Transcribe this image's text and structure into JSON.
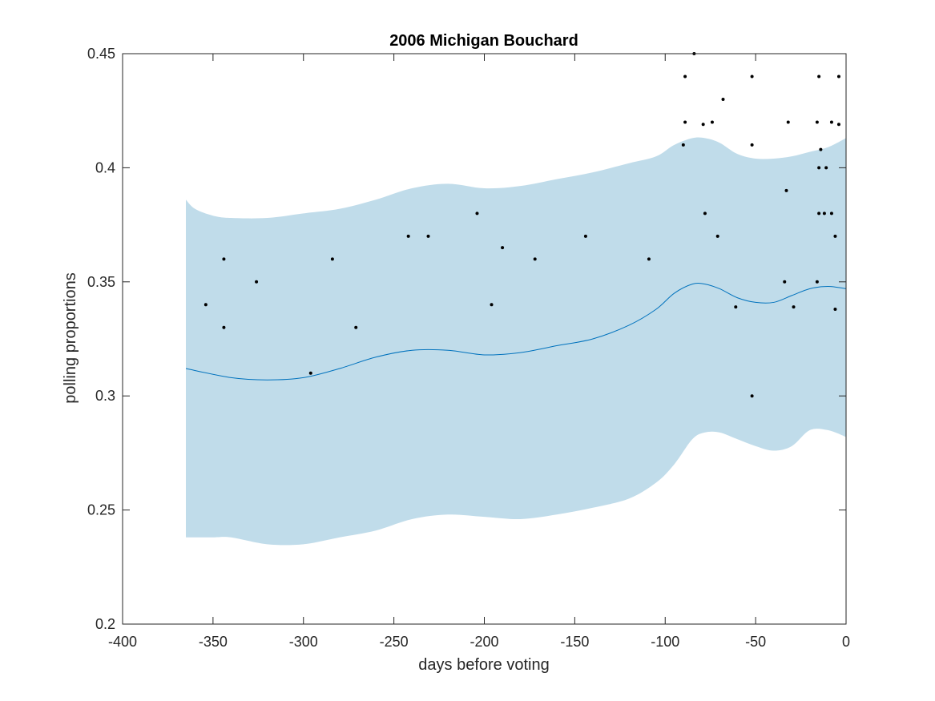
{
  "chart_data": {
    "type": "scatter",
    "title": "2006 Michigan Bouchard",
    "xlabel": "days before voting",
    "ylabel": "polling proportions",
    "xlim": [
      -400,
      0
    ],
    "ylim": [
      0.2,
      0.45
    ],
    "xticks": [
      -400,
      -350,
      -300,
      -250,
      -200,
      -150,
      -100,
      -50,
      0
    ],
    "yticks": [
      0.2,
      0.25,
      0.3,
      0.35,
      0.4,
      0.45
    ],
    "xtick_labels": [
      "-400",
      "-350",
      "-300",
      "-250",
      "-200",
      "-150",
      "-100",
      "-50",
      "0"
    ],
    "ytick_labels": [
      "0.2",
      "0.25",
      "0.3",
      "0.35",
      "0.4",
      "0.45"
    ],
    "grid": false,
    "colors": {
      "band": "#c0dcea",
      "line": "#0072bd",
      "points": "#000000",
      "axes": "#262626"
    },
    "trend": {
      "x": [
        -365,
        -340,
        -320,
        -300,
        -280,
        -260,
        -240,
        -220,
        -200,
        -180,
        -160,
        -140,
        -120,
        -105,
        -95,
        -85,
        -78,
        -70,
        -60,
        -50,
        -40,
        -30,
        -20,
        -10,
        0
      ],
      "y": [
        0.312,
        0.308,
        0.307,
        0.308,
        0.312,
        0.317,
        0.32,
        0.32,
        0.318,
        0.319,
        0.322,
        0.325,
        0.331,
        0.338,
        0.345,
        0.349,
        0.349,
        0.347,
        0.343,
        0.341,
        0.341,
        0.344,
        0.347,
        0.348,
        0.347
      ]
    },
    "band": {
      "x": [
        -365,
        -360,
        -350,
        -340,
        -320,
        -300,
        -280,
        -260,
        -240,
        -220,
        -200,
        -180,
        -160,
        -140,
        -120,
        -105,
        -95,
        -85,
        -78,
        -70,
        -60,
        -50,
        -40,
        -30,
        -20,
        -10,
        0
      ],
      "upper": [
        0.386,
        0.382,
        0.379,
        0.378,
        0.378,
        0.38,
        0.382,
        0.386,
        0.391,
        0.393,
        0.391,
        0.392,
        0.395,
        0.398,
        0.402,
        0.405,
        0.41,
        0.413,
        0.413,
        0.411,
        0.406,
        0.404,
        0.404,
        0.405,
        0.407,
        0.409,
        0.413
      ],
      "lower": [
        0.238,
        0.238,
        0.238,
        0.238,
        0.235,
        0.235,
        0.238,
        0.241,
        0.246,
        0.248,
        0.247,
        0.246,
        0.248,
        0.251,
        0.255,
        0.262,
        0.27,
        0.281,
        0.284,
        0.284,
        0.281,
        0.278,
        0.276,
        0.278,
        0.285,
        0.285,
        0.282
      ]
    },
    "points": {
      "x": [
        -354,
        -344,
        -344,
        -326,
        -296,
        -284,
        -271,
        -242,
        -231,
        -204,
        -196,
        -190,
        -172,
        -144,
        -109,
        -90,
        -89,
        -89,
        -84,
        -79,
        -78,
        -74,
        -71,
        -68,
        -61,
        -52,
        -52,
        -52,
        -34,
        -33,
        -32,
        -29,
        -16,
        -16,
        -15,
        -15,
        -15,
        -14,
        -12,
        -11,
        -8,
        -8,
        -6,
        -6,
        -4,
        -4
      ],
      "y": [
        0.34,
        0.36,
        0.33,
        0.35,
        0.31,
        0.36,
        0.33,
        0.37,
        0.37,
        0.38,
        0.34,
        0.365,
        0.36,
        0.37,
        0.36,
        0.41,
        0.42,
        0.44,
        0.45,
        0.419,
        0.38,
        0.42,
        0.37,
        0.43,
        0.339,
        0.44,
        0.41,
        0.3,
        0.35,
        0.39,
        0.42,
        0.339,
        0.42,
        0.35,
        0.44,
        0.4,
        0.38,
        0.408,
        0.38,
        0.4,
        0.42,
        0.38,
        0.338,
        0.37,
        0.419,
        0.44
      ]
    }
  }
}
